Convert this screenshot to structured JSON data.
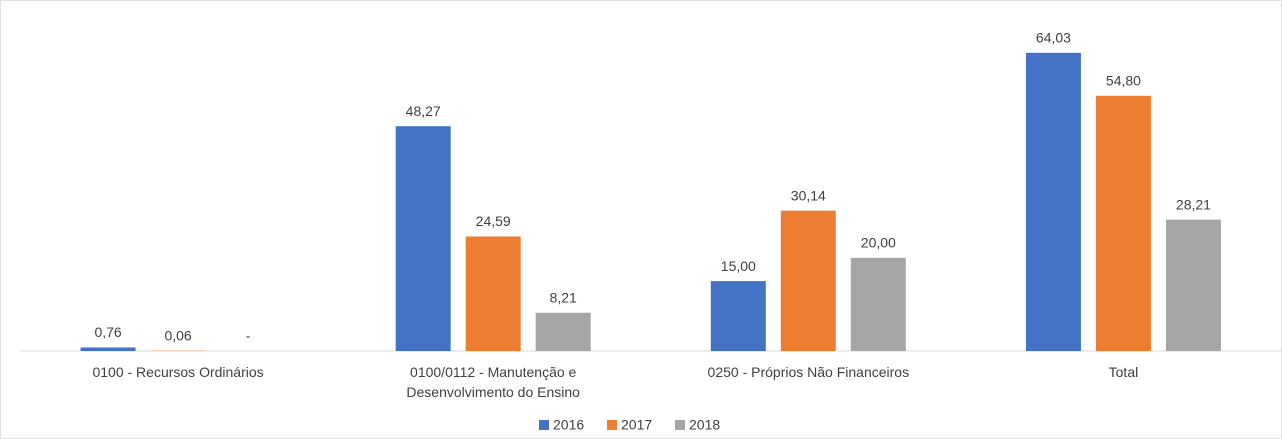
{
  "chart_data": {
    "type": "bar",
    "categories": [
      "0100 - Recursos Ordinários",
      "0100/0112 - Manutenção e Desenvolvimento do Ensino",
      "0250 - Próprios Não Financeiros",
      "Total"
    ],
    "series": [
      {
        "name": "2016",
        "color": "#4472c4",
        "values": [
          0.76,
          48.27,
          15.0,
          64.03
        ],
        "value_labels": [
          "0,76",
          "48,27",
          "15,00",
          "64,03"
        ]
      },
      {
        "name": "2017",
        "color": "#ed7d31",
        "values": [
          0.06,
          24.59,
          30.14,
          54.8
        ],
        "value_labels": [
          "0,06",
          "24,59",
          "30,14",
          "54,80"
        ]
      },
      {
        "name": "2018",
        "color": "#a5a5a5",
        "values": [
          0,
          8.21,
          20.0,
          28.21
        ],
        "value_labels": [
          "-",
          "8,21",
          "20,00",
          "28,21"
        ]
      }
    ],
    "ylim": [
      0,
      70
    ],
    "legend": "bottom"
  }
}
